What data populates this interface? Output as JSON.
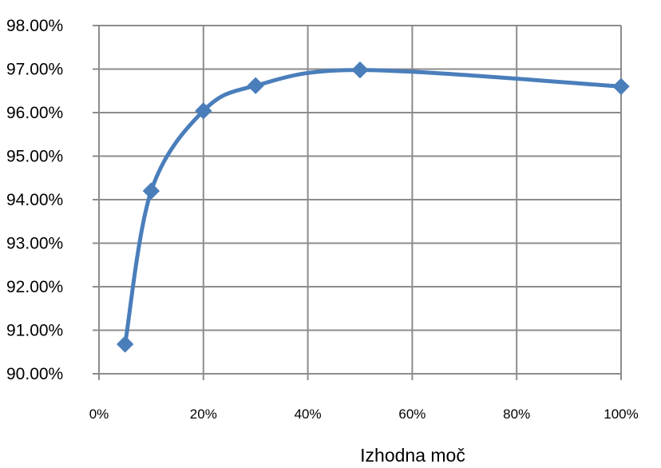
{
  "chart_data": {
    "type": "line",
    "title": "",
    "xlabel": "Izhodna moč",
    "ylabel": "",
    "xlim": [
      0,
      100
    ],
    "ylim": [
      90,
      98
    ],
    "grid": true,
    "x_ticks": [
      "0%",
      "20%",
      "40%",
      "60%",
      "80%",
      "100%"
    ],
    "y_ticks": [
      "90.00%",
      "91.00%",
      "92.00%",
      "93.00%",
      "94.00%",
      "95.00%",
      "96.00%",
      "97.00%",
      "98.00%"
    ],
    "series": [
      {
        "color": "#4a7ebb",
        "marker": "diamond",
        "smooth": true,
        "points": [
          {
            "x": 5,
            "y": 90.68
          },
          {
            "x": 10,
            "y": 94.2
          },
          {
            "x": 20,
            "y": 96.04
          },
          {
            "x": 30,
            "y": 96.62
          },
          {
            "x": 50,
            "y": 96.98
          },
          {
            "x": 100,
            "y": 96.6
          }
        ]
      }
    ]
  }
}
